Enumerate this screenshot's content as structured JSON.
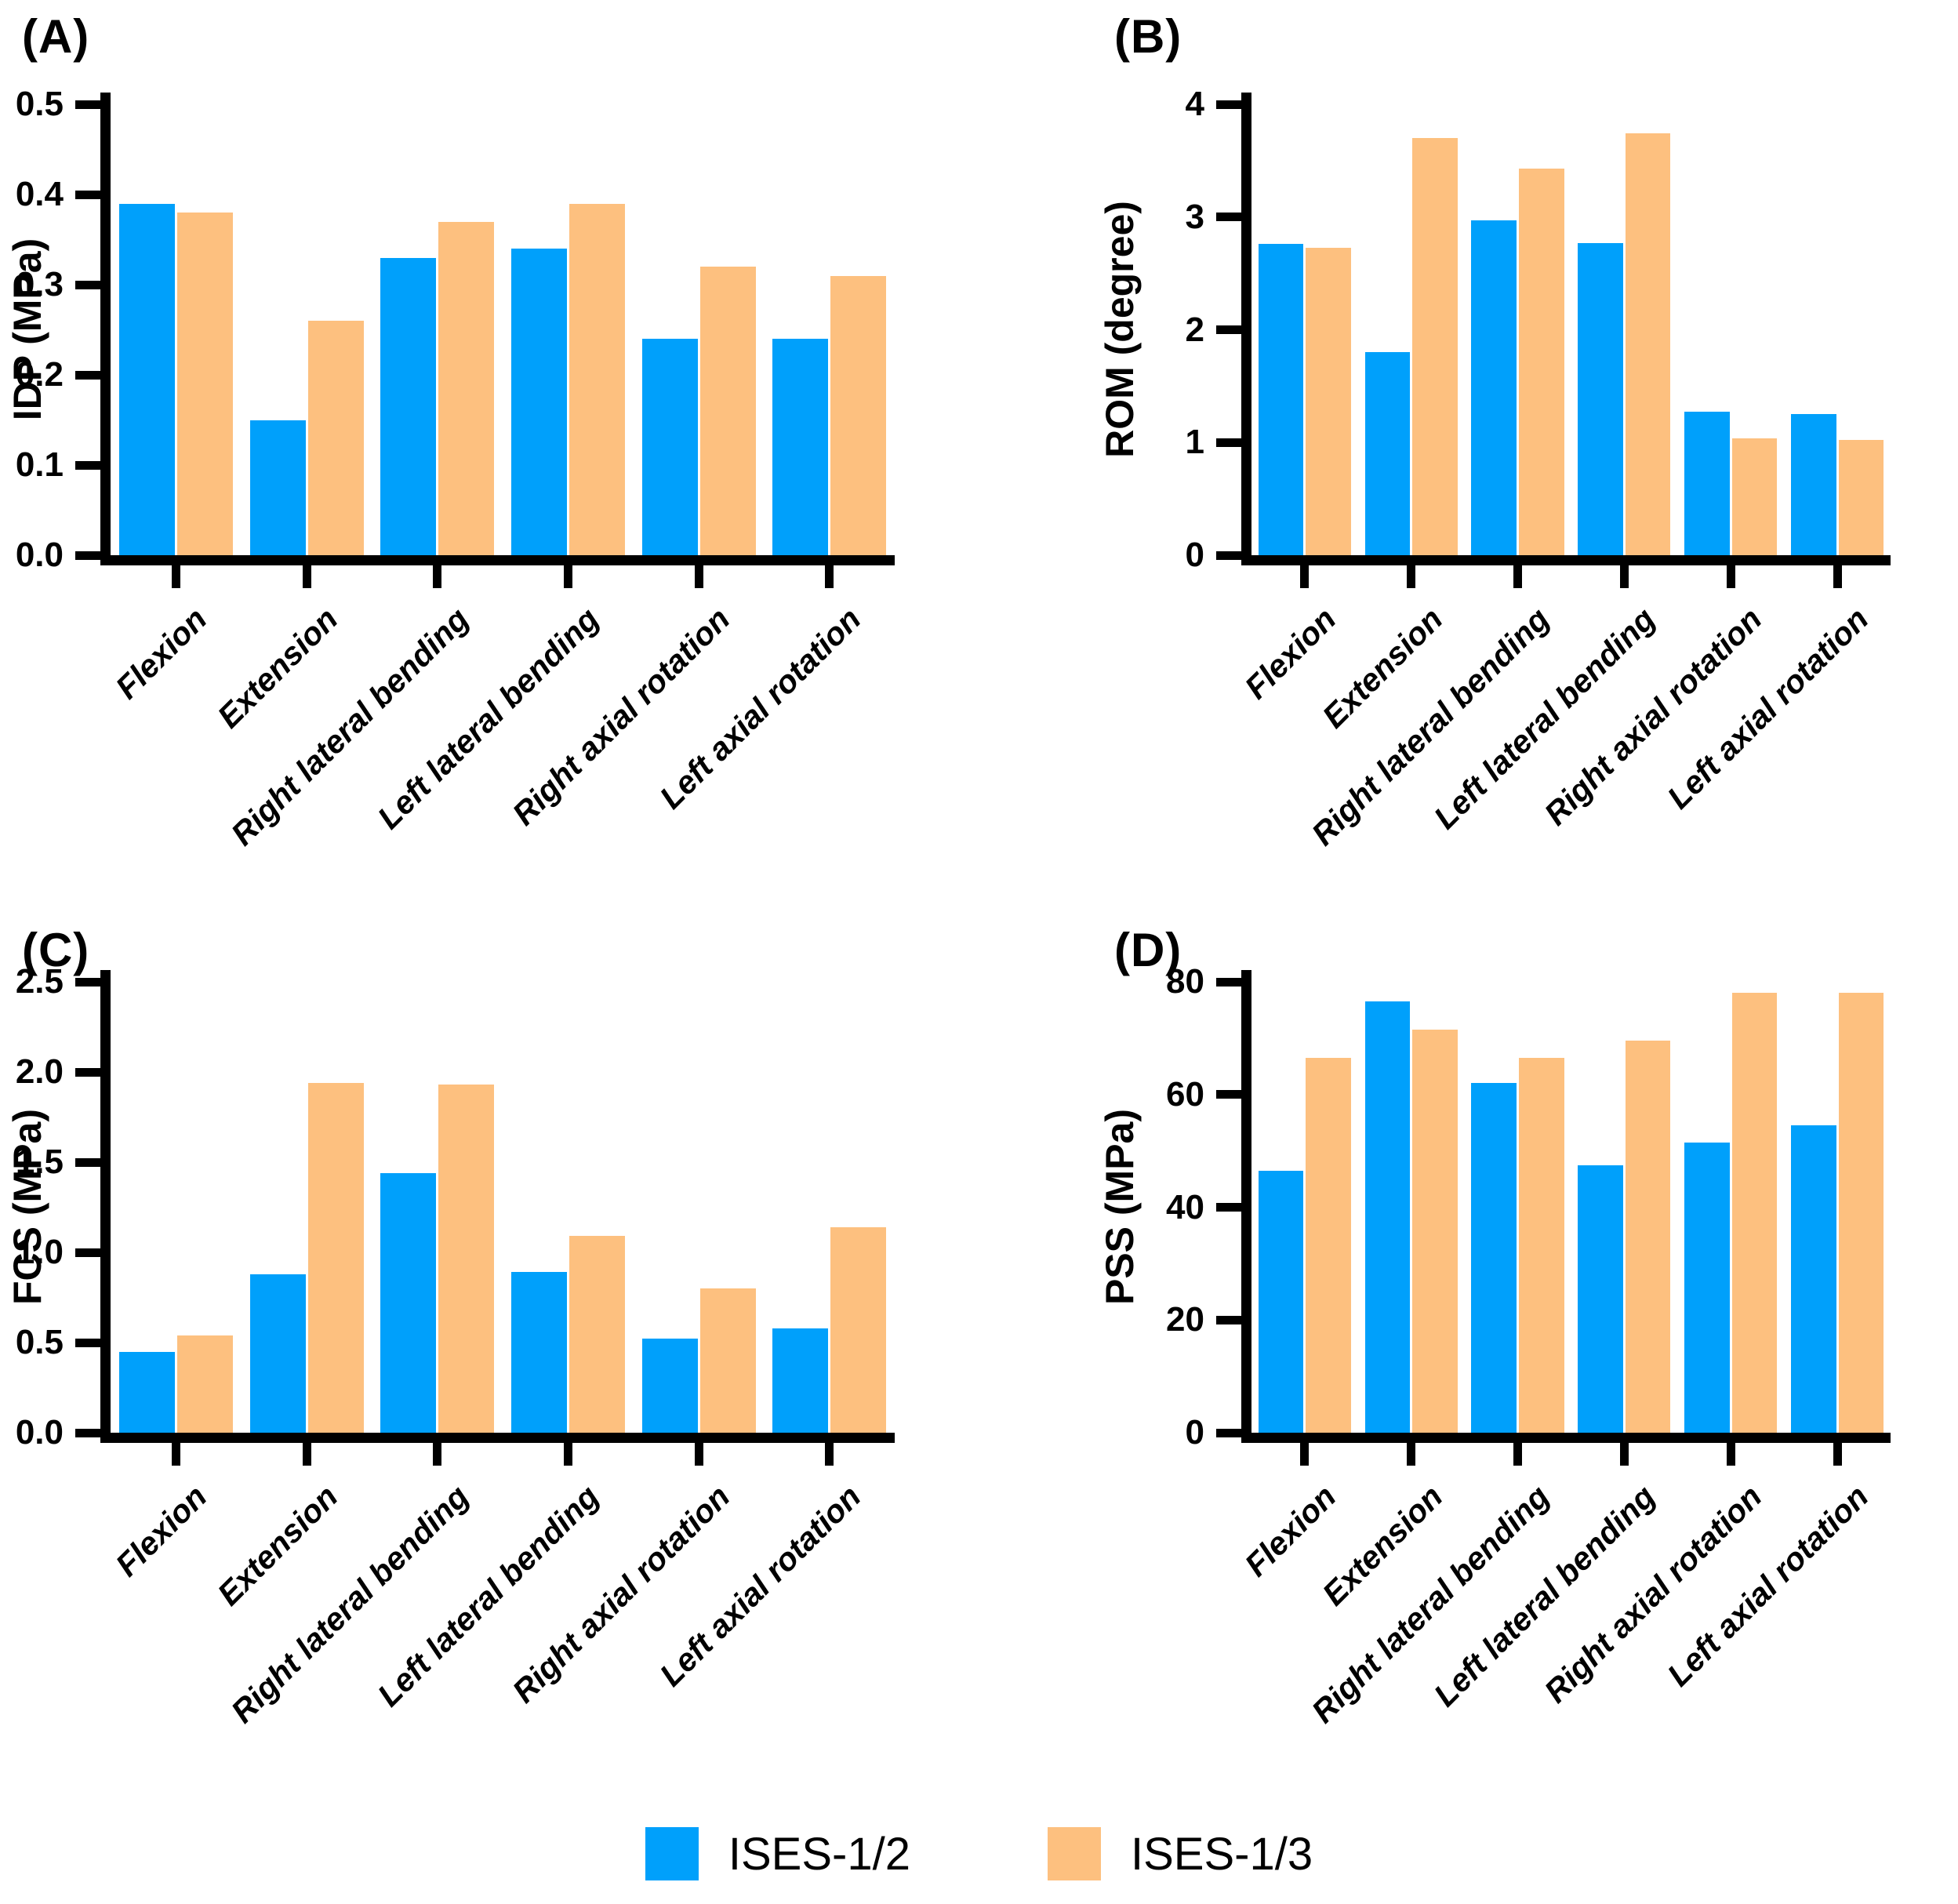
{
  "figure": {
    "background": "#ffffff",
    "colors": {
      "ises12": "#00A0FB",
      "ises13": "#FDC07F"
    },
    "legend": [
      {
        "label": "ISES-1/2",
        "color_key": "ises12"
      },
      {
        "label": "ISES-1/3",
        "color_key": "ises13"
      }
    ]
  },
  "chart_data": [
    {
      "type": "bar",
      "panel_letter": "(A)",
      "ylabel": "IDP (MPa)",
      "xlabel": "",
      "ylim": [
        0,
        0.5
      ],
      "yticks": [
        0,
        0.1,
        0.2,
        0.3,
        0.4,
        0.5
      ],
      "ytick_labels": [
        "0.0",
        "0.1",
        "0.2",
        "0.3",
        "0.4",
        "0.5"
      ],
      "grid": false,
      "categories": [
        "Flexion",
        "Extension",
        "Right lateral bending",
        "Left lateral bending",
        "Right axial rotation",
        "Left axial rotation"
      ],
      "series": [
        {
          "name": "ISES-1/2",
          "color_key": "ises12",
          "values": [
            0.39,
            0.15,
            0.33,
            0.34,
            0.24,
            0.24
          ]
        },
        {
          "name": "ISES-1/3",
          "color_key": "ises13",
          "values": [
            0.38,
            0.26,
            0.37,
            0.39,
            0.32,
            0.31
          ]
        }
      ]
    },
    {
      "type": "bar",
      "panel_letter": "(B)",
      "ylabel": "ROM (degree)",
      "xlabel": "",
      "ylim": [
        0,
        4
      ],
      "yticks": [
        0,
        1,
        2,
        3,
        4
      ],
      "ytick_labels": [
        "0",
        "1",
        "2",
        "3",
        "4"
      ],
      "grid": false,
      "categories": [
        "Flexion",
        "Extension",
        "Right lateral bending",
        "Left lateral bending",
        "Right axial rotation",
        "Left axial rotation"
      ],
      "series": [
        {
          "name": "ISES-1/2",
          "color_key": "ises12",
          "values": [
            2.76,
            1.8,
            2.97,
            2.77,
            1.27,
            1.25
          ]
        },
        {
          "name": "ISES-1/3",
          "color_key": "ises13",
          "values": [
            2.73,
            3.7,
            3.43,
            3.74,
            1.04,
            1.02
          ]
        }
      ]
    },
    {
      "type": "bar",
      "panel_letter": "(C)",
      "ylabel": "FCS (MPa)",
      "xlabel": "",
      "ylim": [
        0,
        2.5
      ],
      "yticks": [
        0,
        0.5,
        1.0,
        1.5,
        2.0,
        2.5
      ],
      "ytick_labels": [
        "0.0",
        "0.5",
        "1.0",
        "1.5",
        "2.0",
        "2.5"
      ],
      "grid": false,
      "categories": [
        "Flexion",
        "Extension",
        "Right lateral bending",
        "Left lateral bending",
        "Right axial rotation",
        "Left axial rotation"
      ],
      "series": [
        {
          "name": "ISES-1/2",
          "color_key": "ises12",
          "values": [
            0.45,
            0.88,
            1.44,
            0.89,
            0.52,
            0.58
          ]
        },
        {
          "name": "ISES-1/3",
          "color_key": "ises13",
          "values": [
            0.54,
            1.94,
            1.93,
            1.09,
            0.8,
            1.14
          ]
        }
      ]
    },
    {
      "type": "bar",
      "panel_letter": "(D)",
      "ylabel": "PSS (MPa)",
      "xlabel": "",
      "ylim": [
        0,
        80
      ],
      "yticks": [
        0,
        20,
        40,
        60,
        80
      ],
      "ytick_labels": [
        "0",
        "20",
        "40",
        "60",
        "80"
      ],
      "grid": false,
      "categories": [
        "Flexion",
        "Extension",
        "Right lateral bending",
        "Left lateral bending",
        "Right axial rotation",
        "Left axial rotation"
      ],
      "series": [
        {
          "name": "ISES-1/2",
          "color_key": "ises12",
          "values": [
            46.5,
            76.5,
            62,
            47.5,
            51.5,
            54.5
          ]
        },
        {
          "name": "ISES-1/3",
          "color_key": "ises13",
          "values": [
            66.5,
            71.5,
            66.5,
            69.5,
            78,
            78
          ]
        }
      ]
    }
  ]
}
